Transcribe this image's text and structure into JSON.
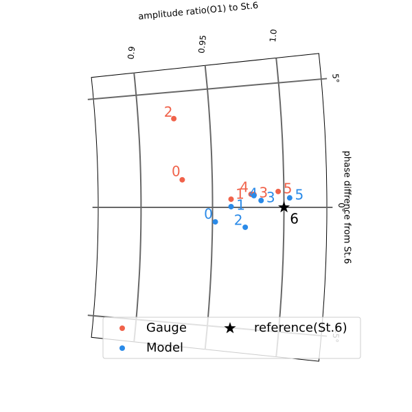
{
  "chart_data": {
    "type": "polar",
    "xlabel": "amplitude ratio(O1) to St.6",
    "ylabel": "phase diffrence from St.6",
    "rlim": [
      0.87,
      1.03
    ],
    "thetalim": [
      -6,
      6
    ],
    "rticks": [
      0.9,
      0.95,
      {
        "value": 1.0,
        "label": "1.0"
      }
    ],
    "thetaticks": [
      {
        "value": 5,
        "label": "5°"
      },
      {
        "value": 0,
        "label": "0°"
      },
      {
        "value": -5,
        "label": "-5°"
      }
    ],
    "grid": true,
    "legend": "lower center",
    "series": [
      {
        "name": "Gauge",
        "color": "#f0624a",
        "marker": "circle",
        "r": [
          0.929,
          0.963,
          0.925,
          0.979,
          0.977,
          0.996
        ],
        "theta": [
          1.19,
          0.34,
          3.85,
          0.53,
          0.54,
          0.64
        ],
        "point_labels": [
          "0",
          "1",
          "2",
          "3",
          "4",
          "5"
        ]
      },
      {
        "name": "Model",
        "color": "#2a8ae8",
        "marker": "circle",
        "r": [
          0.952,
          0.963,
          0.973,
          0.984,
          0.979,
          1.004
        ],
        "theta": [
          -0.61,
          0.03,
          -0.82,
          0.28,
          0.48,
          0.38
        ],
        "point_labels": [
          "0",
          "1",
          "2",
          "3",
          "4",
          "5"
        ]
      },
      {
        "name": "reference(St.6)",
        "color": "#000000",
        "marker": "star",
        "r": [
          1.0
        ],
        "theta": [
          0
        ],
        "point_labels": [
          "6"
        ]
      }
    ]
  }
}
